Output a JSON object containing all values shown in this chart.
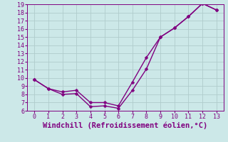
{
  "xlabel": "Windchill (Refroidissement éolien,°C)",
  "bg_color": "#cce8e8",
  "line_color": "#800080",
  "marker": "D",
  "markersize": 2.5,
  "linewidth": 1.0,
  "xlim": [
    -0.5,
    13.5
  ],
  "ylim": [
    6,
    19
  ],
  "xticks": [
    0,
    1,
    2,
    3,
    4,
    5,
    6,
    7,
    8,
    9,
    10,
    11,
    12,
    13
  ],
  "yticks": [
    6,
    7,
    8,
    9,
    10,
    11,
    12,
    13,
    14,
    15,
    16,
    17,
    18,
    19
  ],
  "series1_x": [
    0,
    1,
    2,
    3,
    4,
    5,
    6,
    7,
    8,
    9,
    10,
    11,
    12,
    13
  ],
  "series1_y": [
    9.8,
    8.7,
    8.0,
    8.1,
    6.5,
    6.6,
    6.3,
    8.5,
    11.1,
    15.0,
    16.1,
    17.5,
    19.1,
    18.3
  ],
  "series2_x": [
    0,
    1,
    2,
    3,
    4,
    5,
    6,
    7,
    8,
    9,
    10,
    11,
    12,
    13
  ],
  "series2_y": [
    9.8,
    8.7,
    8.3,
    8.5,
    7.0,
    7.0,
    6.6,
    9.5,
    12.5,
    15.0,
    16.1,
    17.5,
    19.1,
    18.3
  ],
  "grid_color": "#b0cccc",
  "xlabel_fontsize": 7.5
}
